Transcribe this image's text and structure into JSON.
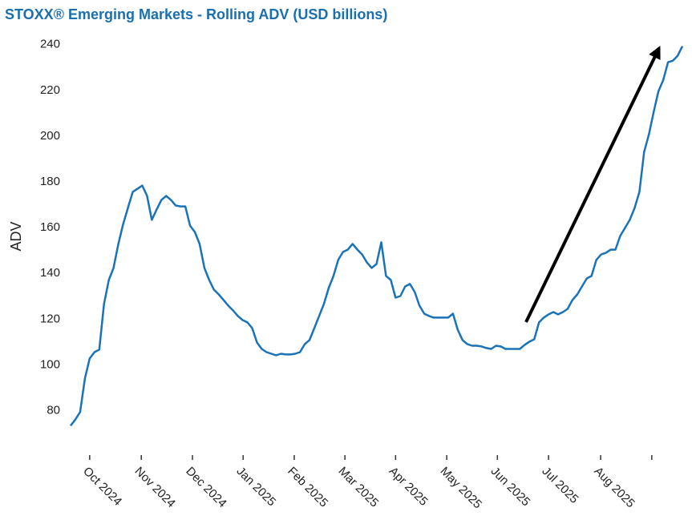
{
  "chart_data": {
    "type": "line",
    "title": "STOXX® Emerging Markets - Rolling ADV (USD billions)",
    "y_label": "ADV",
    "series": [
      {
        "name": "Rolling ADV",
        "color": "#1a72b8",
        "values": [
          73.4,
          76.2,
          79.4,
          94.1,
          102.8,
          105.6,
          106.7,
          126.6,
          137.1,
          142.4,
          152.9,
          161.6,
          168.6,
          175.6,
          177,
          178.4,
          173.9,
          163.4,
          167.9,
          172.1,
          173.9,
          172.1,
          169.7,
          169.3,
          169.3,
          160.9,
          158.1,
          152.9,
          142.4,
          137.1,
          132.9,
          130.8,
          128.4,
          125.9,
          123.8,
          121.4,
          119.6,
          118.6,
          116.1,
          109.8,
          107,
          105.6,
          104.9,
          104.2,
          104.9,
          104.6,
          104.6,
          104.9,
          105.6,
          109.1,
          110.9,
          116.1,
          121.4,
          126.6,
          133.6,
          138.9,
          145.9,
          149.4,
          150.4,
          152.9,
          150.4,
          148.3,
          144.8,
          142.4,
          144.1,
          153.6,
          138.9,
          137.1,
          129.4,
          130.1,
          134.3,
          135.4,
          131.9,
          125.9,
          122.4,
          121.4,
          120.7,
          120.7,
          120.7,
          120.7,
          122.4,
          115.4,
          110.9,
          109.1,
          108.4,
          108.4,
          108.1,
          107.4,
          107,
          108.4,
          108.1,
          107,
          107,
          107,
          107,
          108.8,
          110.2,
          111.2,
          118.6,
          120.7,
          122.1,
          123.1,
          122.1,
          123.1,
          124.5,
          128.4,
          130.8,
          134.3,
          137.8,
          138.9,
          145.9,
          148.3,
          149,
          150.4,
          150.4,
          156.4,
          159.9,
          163.4,
          168.6,
          175.6,
          193.1,
          200.8,
          210.6,
          219.7,
          224.6,
          232.3,
          233,
          235.1,
          239.3
        ]
      }
    ],
    "xlim": [
      0,
      128
    ],
    "xticks": [
      {
        "value": 4.0,
        "label": "Oct 2024"
      },
      {
        "value": 14.8,
        "label": "Nov 2024"
      },
      {
        "value": 25.5,
        "label": "Dec 2024"
      },
      {
        "value": 36.1,
        "label": "Jan 2025"
      },
      {
        "value": 46.8,
        "label": "Feb 2025"
      },
      {
        "value": 57.4,
        "label": "Mar 2025"
      },
      {
        "value": 68.0,
        "label": "Apr 2025"
      },
      {
        "value": 78.7,
        "label": "May 2025"
      },
      {
        "value": 89.3,
        "label": "Jun 2025"
      },
      {
        "value": 100.0,
        "label": "Jul 2025"
      },
      {
        "value": 110.9,
        "label": "Aug 2025"
      },
      {
        "value": 121.6,
        "label": null
      }
    ],
    "ylim": [
      62,
      242
    ],
    "yticks": [
      80,
      100,
      120,
      140,
      160,
      180,
      200,
      220,
      240
    ],
    "grid": false
  }
}
